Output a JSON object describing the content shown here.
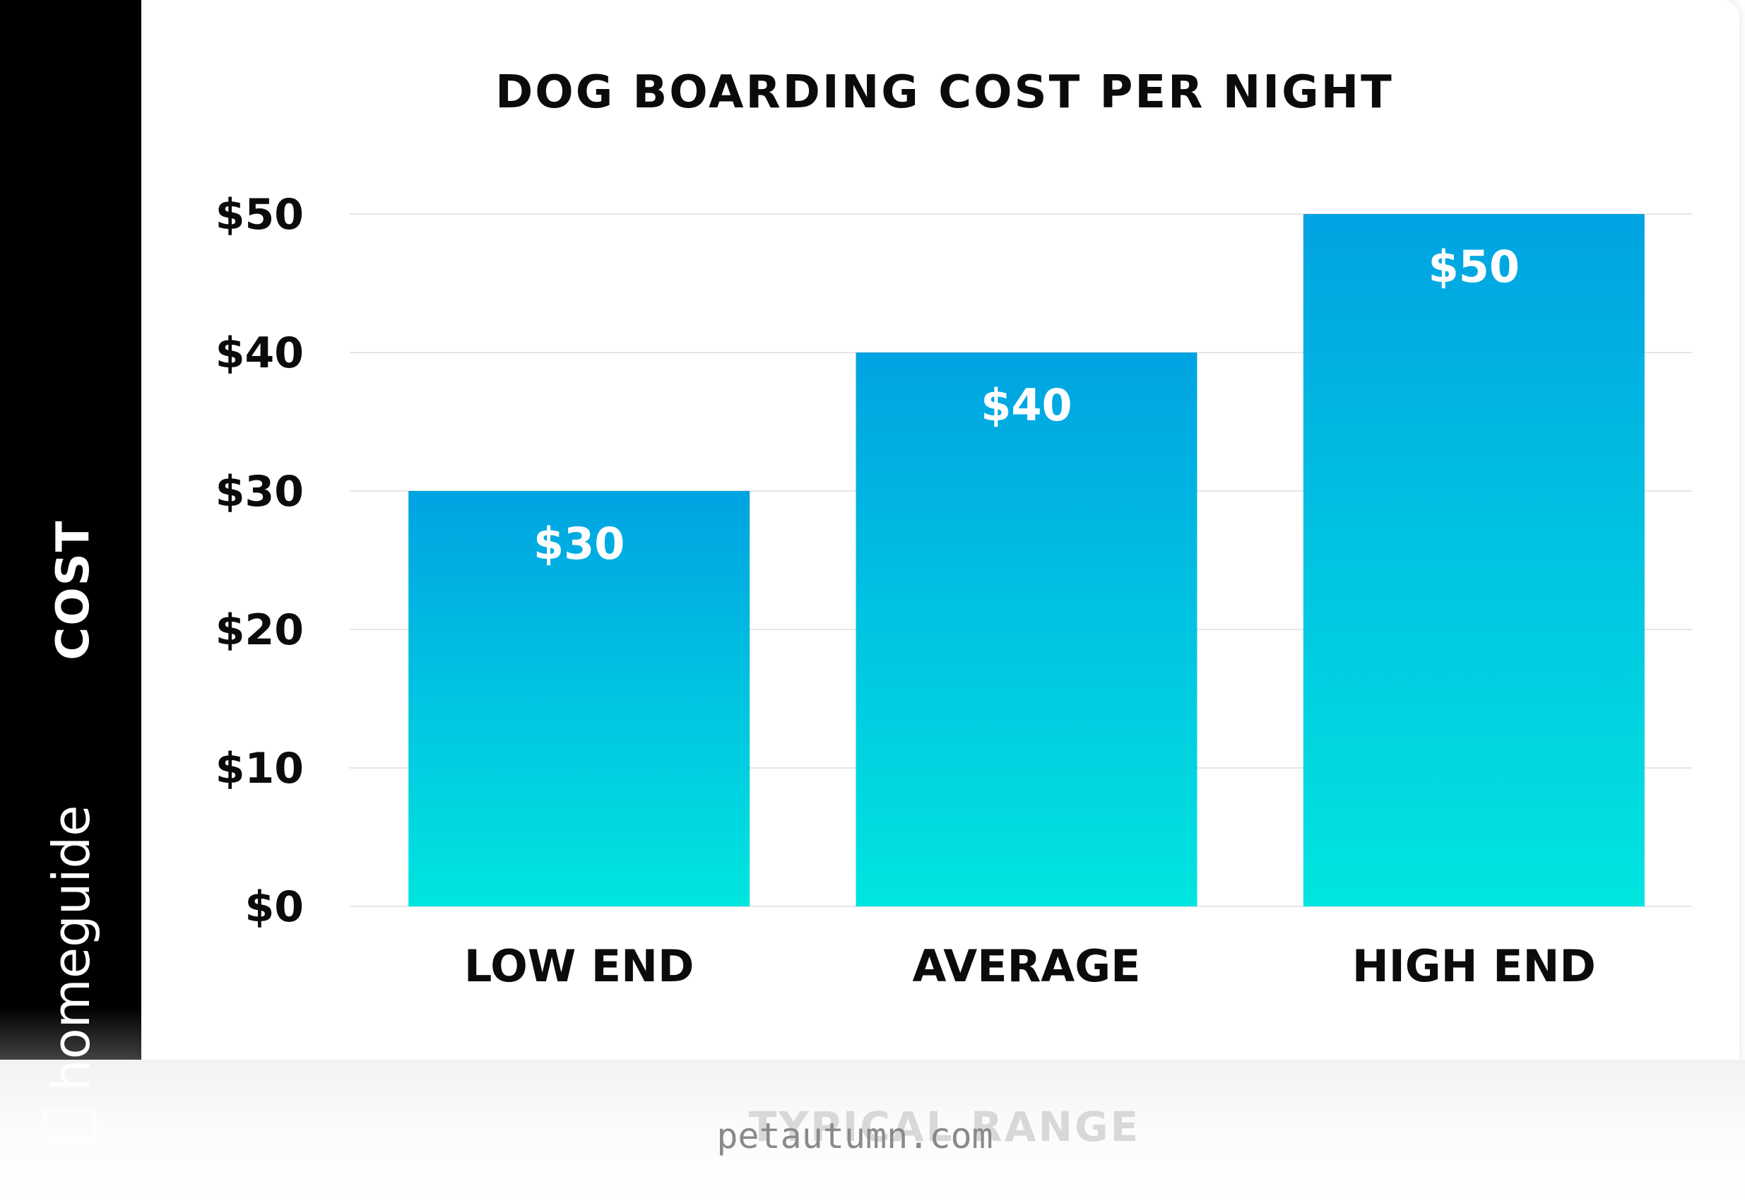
{
  "brand": {
    "name": "homeguide"
  },
  "watermark": "petautumn.com",
  "chart_data": {
    "type": "bar",
    "title": "DOG BOARDING COST PER NIGHT",
    "ylabel": "COST",
    "xlabel": "TYPICAL RANGE",
    "categories": [
      "LOW END",
      "AVERAGE",
      "HIGH END"
    ],
    "values": [
      30,
      40,
      50
    ],
    "data_labels": [
      "$30",
      "$40",
      "$50"
    ],
    "ylim": [
      0,
      50
    ],
    "yticks": [
      0,
      10,
      20,
      30,
      40,
      50
    ],
    "ytick_labels": [
      "$0",
      "$10",
      "$20",
      "$30",
      "$40",
      "$50"
    ],
    "grid": true,
    "colors": {
      "bar_top": "#00a3e2",
      "bar_bottom": "#00e5e0",
      "grid": "#e6e6e6",
      "sidebar": "#000000"
    }
  }
}
